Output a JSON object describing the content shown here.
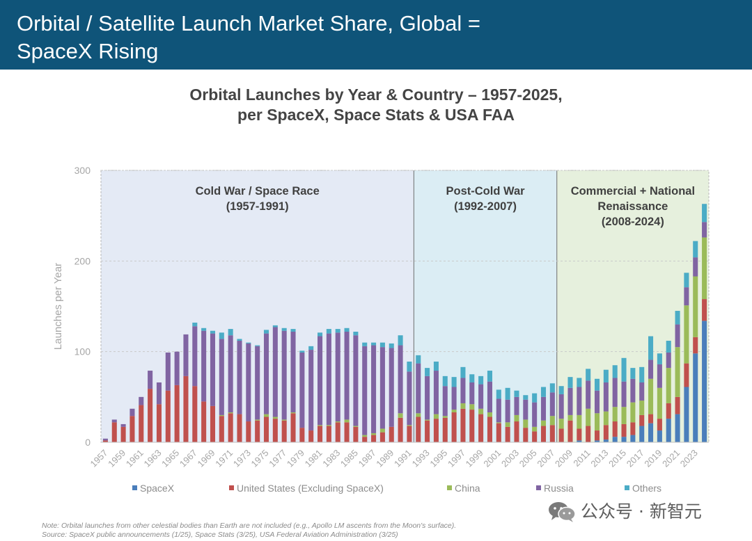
{
  "header": {
    "title_line1": "Orbital / Satellite Launch Market Share, Global =",
    "title_line2": "SpaceX Rising"
  },
  "chart_data": {
    "type": "stacked-bar",
    "title_line1": "Orbital Launches by Year & Country – 1957-2025,",
    "title_line2": "per SpaceX, Space Stats & USA FAA",
    "xlabel": "",
    "ylabel": "Launches per Year",
    "ylim": [
      0,
      300
    ],
    "yticks": [
      0,
      100,
      200,
      300
    ],
    "grid": true,
    "legend_position": "bottom",
    "categories": [
      1957,
      1958,
      1959,
      1960,
      1961,
      1962,
      1963,
      1964,
      1965,
      1966,
      1967,
      1968,
      1969,
      1970,
      1971,
      1972,
      1973,
      1974,
      1975,
      1976,
      1977,
      1978,
      1979,
      1980,
      1981,
      1982,
      1983,
      1984,
      1985,
      1986,
      1987,
      1988,
      1989,
      1990,
      1991,
      1992,
      1993,
      1994,
      1995,
      1996,
      1997,
      1998,
      1999,
      2000,
      2001,
      2002,
      2003,
      2004,
      2005,
      2006,
      2007,
      2008,
      2009,
      2010,
      2011,
      2012,
      2013,
      2014,
      2015,
      2016,
      2017,
      2018,
      2019,
      2020,
      2021,
      2022,
      2023,
      2024
    ],
    "series": [
      {
        "name": "SpaceX",
        "color": "#4a7ebb",
        "values": [
          0,
          0,
          0,
          0,
          0,
          0,
          0,
          0,
          0,
          0,
          0,
          0,
          0,
          0,
          0,
          0,
          0,
          0,
          0,
          0,
          0,
          0,
          0,
          0,
          0,
          0,
          0,
          0,
          0,
          0,
          0,
          0,
          0,
          0,
          0,
          0,
          0,
          0,
          0,
          0,
          0,
          0,
          0,
          0,
          0,
          0,
          0,
          0,
          0,
          0,
          0,
          0,
          0,
          2,
          0,
          2,
          3,
          6,
          6,
          8,
          18,
          21,
          13,
          26,
          31,
          61,
          98,
          134
        ]
      },
      {
        "name": "United States (Excluding SpaceX)",
        "color": "#c0504d",
        "values": [
          2,
          22,
          17,
          29,
          41,
          59,
          42,
          57,
          63,
          73,
          62,
          45,
          40,
          29,
          32,
          31,
          23,
          24,
          28,
          26,
          24,
          32,
          16,
          13,
          18,
          18,
          22,
          22,
          17,
          6,
          8,
          11,
          17,
          27,
          18,
          28,
          24,
          26,
          27,
          33,
          37,
          36,
          31,
          28,
          21,
          17,
          23,
          16,
          12,
          18,
          19,
          15,
          24,
          13,
          18,
          11,
          16,
          17,
          14,
          14,
          12,
          10,
          13,
          17,
          19,
          26,
          18,
          24
        ]
      },
      {
        "name": "China",
        "color": "#9bbb59",
        "values": [
          0,
          0,
          0,
          0,
          0,
          0,
          0,
          0,
          0,
          0,
          0,
          0,
          0,
          1,
          1,
          0,
          0,
          1,
          3,
          2,
          1,
          1,
          0,
          0,
          1,
          1,
          1,
          3,
          1,
          2,
          2,
          4,
          0,
          5,
          1,
          4,
          1,
          5,
          2,
          3,
          6,
          6,
          6,
          5,
          1,
          5,
          7,
          9,
          5,
          6,
          10,
          11,
          6,
          15,
          19,
          19,
          15,
          16,
          19,
          22,
          16,
          39,
          34,
          39,
          55,
          64,
          67,
          68
        ]
      },
      {
        "name": "Russia",
        "color": "#8064a2",
        "values": [
          2,
          3,
          3,
          8,
          9,
          20,
          24,
          42,
          37,
          46,
          66,
          78,
          80,
          84,
          85,
          81,
          86,
          81,
          89,
          99,
          98,
          89,
          83,
          89,
          98,
          101,
          98,
          97,
          100,
          98,
          97,
          90,
          87,
          75,
          59,
          55,
          48,
          48,
          33,
          25,
          28,
          24,
          27,
          34,
          26,
          25,
          20,
          22,
          27,
          26,
          26,
          27,
          30,
          31,
          31,
          25,
          32,
          32,
          28,
          26,
          20,
          21,
          26,
          17,
          25,
          20,
          21,
          17
        ]
      },
      {
        "name": "Others",
        "color": "#4bacc6",
        "values": [
          0,
          0,
          0,
          0,
          0,
          0,
          0,
          0,
          0,
          0,
          4,
          3,
          3,
          7,
          7,
          2,
          1,
          1,
          4,
          2,
          3,
          3,
          2,
          4,
          4,
          5,
          4,
          4,
          4,
          4,
          3,
          5,
          5,
          11,
          11,
          9,
          9,
          10,
          11,
          11,
          12,
          9,
          9,
          12,
          10,
          13,
          7,
          5,
          10,
          11,
          10,
          9,
          12,
          10,
          13,
          13,
          14,
          14,
          26,
          12,
          17,
          26,
          12,
          13,
          15,
          16,
          18,
          20
        ]
      }
    ],
    "eras": [
      {
        "line1": "Cold War / Space Race",
        "line2": "(1957-1991)",
        "line3": "",
        "start": 1957,
        "end": 1991,
        "fill": "#e4eaf5"
      },
      {
        "line1": "Post-Cold War",
        "line2": "(1992-2007)",
        "line3": "",
        "start": 1992,
        "end": 2007,
        "fill": "#dbedf4"
      },
      {
        "line1": "Commercial + National",
        "line2": "Renaissance",
        "line3": "(2008-2024)",
        "start": 2008,
        "end": 2024,
        "fill": "#e6f0dd"
      }
    ]
  },
  "footnotes": {
    "note": "Note: Orbital launches from other celestial bodies than Earth are not included (e.g., Apollo LM ascents from the Moon's surface).",
    "source": "Source: SpaceX public announcements (1/25), Space Stats (3/25), USA Federal Aviation Administration (3/25)"
  },
  "watermark": {
    "text": "公众号 · 新智元",
    "icon": "wechat-icon"
  }
}
